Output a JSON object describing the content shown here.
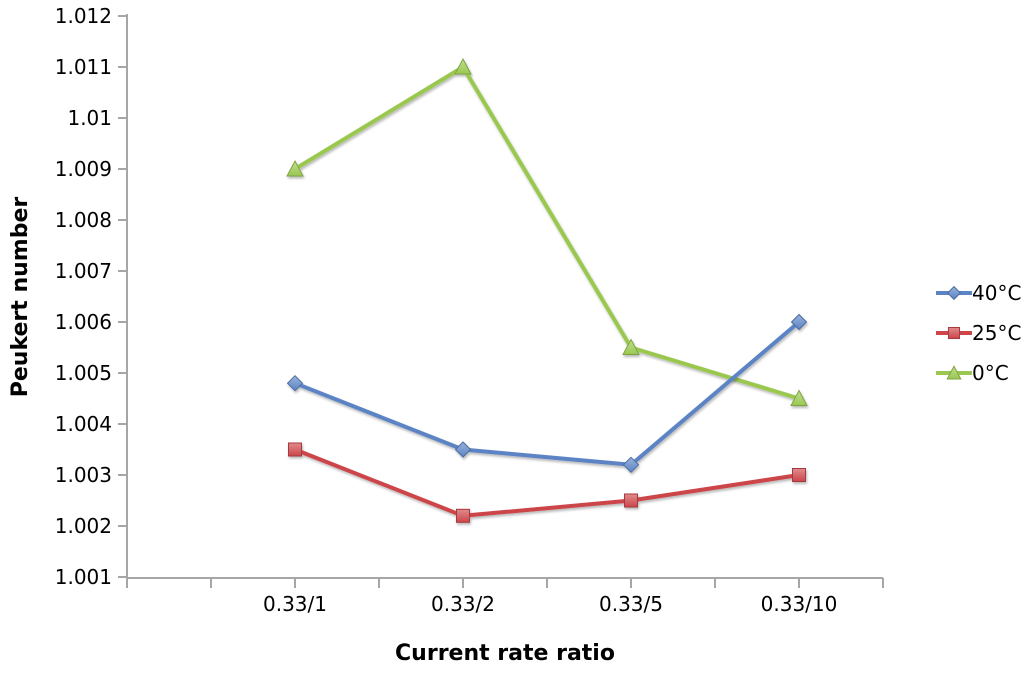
{
  "chart_data": {
    "type": "line",
    "title": "",
    "xlabel": "Current rate ratio",
    "ylabel": "Peukert number",
    "categories": [
      "0.33/1",
      "0.33/2",
      "0.33/5",
      "0.33/10"
    ],
    "series": [
      {
        "name": "40°C",
        "color": "#5B84C4",
        "marker": "diamond",
        "values": [
          1.0048,
          1.0035,
          1.0032,
          1.006
        ]
      },
      {
        "name": "25°C",
        "color": "#CC4549",
        "marker": "square",
        "values": [
          1.0035,
          1.0022,
          1.0025,
          1.003
        ]
      },
      {
        "name": "0°C",
        "color": "#9AC850",
        "marker": "triangle",
        "values": [
          1.009,
          1.011,
          1.0055,
          1.0045
        ]
      }
    ],
    "ylim": [
      1.001,
      1.012
    ],
    "ytick_labels": [
      "1.001",
      "1.002",
      "1.003",
      "1.004",
      "1.005",
      "1.006",
      "1.007",
      "1.008",
      "1.009",
      "1.01",
      "1.011",
      "1.012"
    ],
    "legend_position": "right",
    "grid": false,
    "axis_color": "#A6A6A6",
    "text_color": "#000000"
  }
}
